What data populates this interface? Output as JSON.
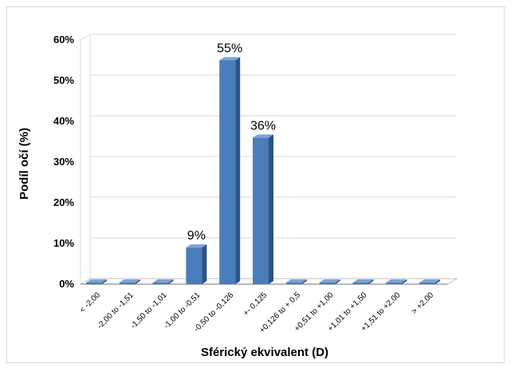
{
  "chart_data": {
    "type": "bar",
    "title": "",
    "xlabel": "Sférický ekvivalent (D)",
    "ylabel": "Podíl očí (%)",
    "ylim": [
      0,
      60
    ],
    "yticks": [
      "0%",
      "10%",
      "20%",
      "30%",
      "40%",
      "50%",
      "60%"
    ],
    "categories": [
      "< -2,00",
      "-2,00 to -1,51",
      "-1,50 to -1,01",
      "-1,00 to -0,51",
      "-0,50 to -0,126",
      "+- 0,125",
      "+0,126 to + 0,5",
      "+0,51 to +1,00",
      "+1,01 to +1,50",
      "+1,51 to +2,00",
      "> +2,00"
    ],
    "values": [
      0,
      0,
      0,
      9,
      55,
      36,
      0,
      0,
      0,
      0,
      0
    ],
    "data_labels": [
      "",
      "",
      "",
      "9%",
      "55%",
      "36%",
      "",
      "",
      "",
      "",
      ""
    ],
    "grid": true,
    "colors": {
      "bar_front": "#4a7ebb",
      "bar_side": "#2c5286",
      "bar_top": "#7ea4d6",
      "grid": "#d9d9d9"
    }
  }
}
